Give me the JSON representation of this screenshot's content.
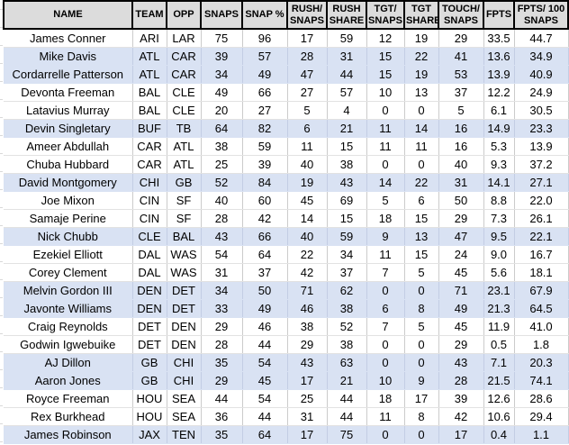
{
  "colors": {
    "header_bg": "#DCDCDC",
    "header_border": "#000000",
    "row_shaded_bg": "#D9E2F3",
    "grid_v": "#CBCBCB",
    "grid_h": "#E2E2E2",
    "text": "#000000"
  },
  "table": {
    "columns": [
      {
        "key": "name",
        "label": "NAME"
      },
      {
        "key": "team",
        "label": "TEAM"
      },
      {
        "key": "opp",
        "label": "OPP"
      },
      {
        "key": "snaps",
        "label": "SNAPS"
      },
      {
        "key": "snap-pct",
        "label": "SNAP %"
      },
      {
        "key": "rush-snaps",
        "label": "RUSH/\nSNAPS"
      },
      {
        "key": "rush-share",
        "label": "RUSH\nSHARE"
      },
      {
        "key": "tgt-snaps",
        "label": "TGT/\nSNAPS"
      },
      {
        "key": "tgt-share",
        "label": "TGT\nSHARE"
      },
      {
        "key": "touch-snaps",
        "label": "TOUCH/\nSNAPS"
      },
      {
        "key": "fpts",
        "label": "FPTS"
      },
      {
        "key": "fpts-100",
        "label": "FPTS/ 100\nSNAPS"
      }
    ],
    "rows": [
      {
        "shaded": false,
        "cells": [
          "James Conner",
          "ARI",
          "LAR",
          "75",
          "96",
          "17",
          "59",
          "12",
          "19",
          "29",
          "33.5",
          "44.7"
        ]
      },
      {
        "shaded": true,
        "cells": [
          "Mike Davis",
          "ATL",
          "CAR",
          "39",
          "57",
          "28",
          "31",
          "15",
          "22",
          "41",
          "13.6",
          "34.9"
        ]
      },
      {
        "shaded": true,
        "cells": [
          "Cordarrelle Patterson",
          "ATL",
          "CAR",
          "34",
          "49",
          "47",
          "44",
          "15",
          "19",
          "53",
          "13.9",
          "40.9"
        ]
      },
      {
        "shaded": false,
        "cells": [
          "Devonta Freeman",
          "BAL",
          "CLE",
          "49",
          "66",
          "27",
          "57",
          "10",
          "13",
          "37",
          "12.2",
          "24.9"
        ]
      },
      {
        "shaded": false,
        "cells": [
          "Latavius Murray",
          "BAL",
          "CLE",
          "20",
          "27",
          "5",
          "4",
          "0",
          "0",
          "5",
          "6.1",
          "30.5"
        ]
      },
      {
        "shaded": true,
        "cells": [
          "Devin Singletary",
          "BUF",
          "TB",
          "64",
          "82",
          "6",
          "21",
          "11",
          "14",
          "16",
          "14.9",
          "23.3"
        ]
      },
      {
        "shaded": false,
        "cells": [
          "Ameer Abdullah",
          "CAR",
          "ATL",
          "38",
          "59",
          "11",
          "15",
          "11",
          "11",
          "16",
          "5.3",
          "13.9"
        ]
      },
      {
        "shaded": false,
        "cells": [
          "Chuba Hubbard",
          "CAR",
          "ATL",
          "25",
          "39",
          "40",
          "38",
          "0",
          "0",
          "40",
          "9.3",
          "37.2"
        ]
      },
      {
        "shaded": true,
        "cells": [
          "David Montgomery",
          "CHI",
          "GB",
          "52",
          "84",
          "19",
          "43",
          "14",
          "22",
          "31",
          "14.1",
          "27.1"
        ]
      },
      {
        "shaded": false,
        "cells": [
          "Joe Mixon",
          "CIN",
          "SF",
          "40",
          "60",
          "45",
          "69",
          "5",
          "6",
          "50",
          "8.8",
          "22.0"
        ]
      },
      {
        "shaded": false,
        "cells": [
          "Samaje Perine",
          "CIN",
          "SF",
          "28",
          "42",
          "14",
          "15",
          "18",
          "15",
          "29",
          "7.3",
          "26.1"
        ]
      },
      {
        "shaded": true,
        "cells": [
          "Nick Chubb",
          "CLE",
          "BAL",
          "43",
          "66",
          "40",
          "59",
          "9",
          "13",
          "47",
          "9.5",
          "22.1"
        ]
      },
      {
        "shaded": false,
        "cells": [
          "Ezekiel Elliott",
          "DAL",
          "WAS",
          "54",
          "64",
          "22",
          "34",
          "11",
          "15",
          "24",
          "9.0",
          "16.7"
        ]
      },
      {
        "shaded": false,
        "cells": [
          "Corey Clement",
          "DAL",
          "WAS",
          "31",
          "37",
          "42",
          "37",
          "7",
          "5",
          "45",
          "5.6",
          "18.1"
        ]
      },
      {
        "shaded": true,
        "cells": [
          "Melvin Gordon III",
          "DEN",
          "DET",
          "34",
          "50",
          "71",
          "62",
          "0",
          "0",
          "71",
          "23.1",
          "67.9"
        ]
      },
      {
        "shaded": true,
        "cells": [
          "Javonte Williams",
          "DEN",
          "DET",
          "33",
          "49",
          "46",
          "38",
          "6",
          "8",
          "49",
          "21.3",
          "64.5"
        ]
      },
      {
        "shaded": false,
        "cells": [
          "Craig Reynolds",
          "DET",
          "DEN",
          "29",
          "46",
          "38",
          "52",
          "7",
          "5",
          "45",
          "11.9",
          "41.0"
        ]
      },
      {
        "shaded": false,
        "cells": [
          "Godwin Igwebuike",
          "DET",
          "DEN",
          "28",
          "44",
          "29",
          "38",
          "0",
          "0",
          "29",
          "0.5",
          "1.8"
        ]
      },
      {
        "shaded": true,
        "cells": [
          "AJ Dillon",
          "GB",
          "CHI",
          "35",
          "54",
          "43",
          "63",
          "0",
          "0",
          "43",
          "7.1",
          "20.3"
        ]
      },
      {
        "shaded": true,
        "cells": [
          "Aaron Jones",
          "GB",
          "CHI",
          "29",
          "45",
          "17",
          "21",
          "10",
          "9",
          "28",
          "21.5",
          "74.1"
        ]
      },
      {
        "shaded": false,
        "cells": [
          "Royce Freeman",
          "HOU",
          "SEA",
          "44",
          "54",
          "25",
          "44",
          "18",
          "17",
          "39",
          "12.6",
          "28.6"
        ]
      },
      {
        "shaded": false,
        "cells": [
          "Rex Burkhead",
          "HOU",
          "SEA",
          "36",
          "44",
          "31",
          "44",
          "11",
          "8",
          "42",
          "10.6",
          "29.4"
        ]
      },
      {
        "shaded": true,
        "cells": [
          "James Robinson",
          "JAX",
          "TEN",
          "35",
          "64",
          "17",
          "75",
          "0",
          "0",
          "17",
          "0.4",
          "1.1"
        ]
      }
    ]
  }
}
